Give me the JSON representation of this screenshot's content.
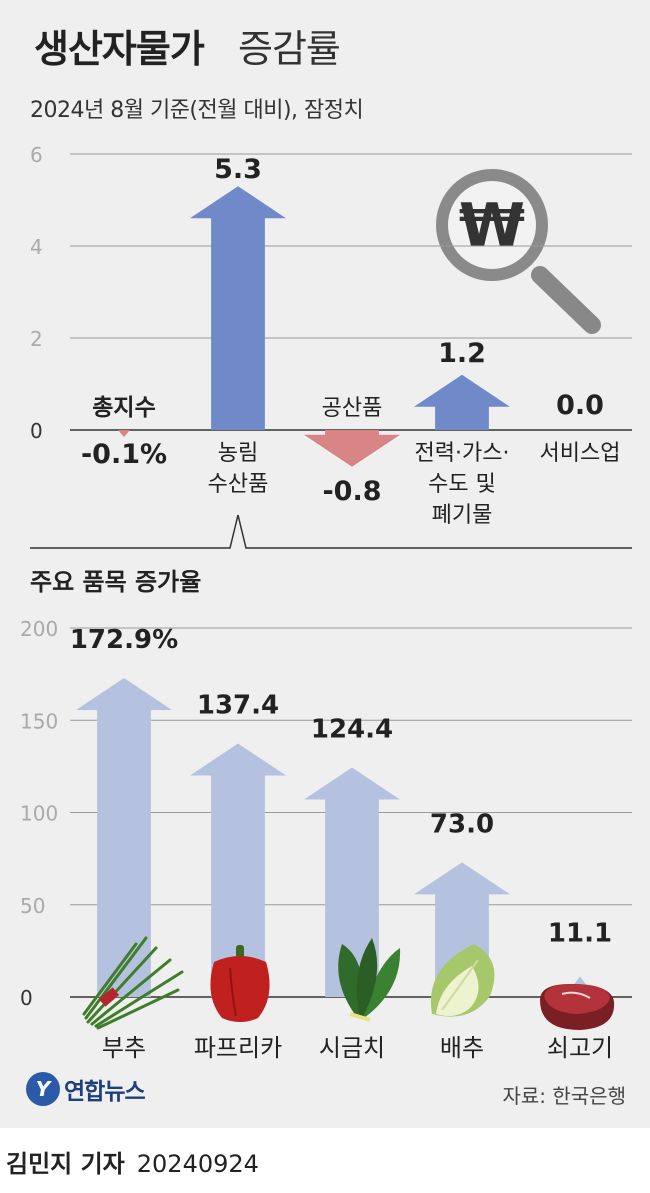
{
  "header": {
    "title_main": "생산자물가",
    "title_sub": "증감률",
    "subtitle": "2024년 8월 기준(전월 대비), 잠정치"
  },
  "chart_data": [
    {
      "type": "bar",
      "categories": [
        "총지수",
        "농림\n수산품",
        "공산품",
        "전력·가스·\n수도 및\n폐기물",
        "서비스업"
      ],
      "values": [
        -0.1,
        5.3,
        -0.8,
        1.2,
        0.0
      ],
      "value_labels": [
        "-0.1%",
        "5.3",
        "-0.8",
        "1.2",
        "0.0"
      ],
      "yticks": [
        0,
        2,
        4,
        6
      ],
      "ylim": [
        -1,
        6
      ],
      "grid": true,
      "colors": {
        "positive": "#6f89c9",
        "negative": "#d98585"
      }
    },
    {
      "type": "bar",
      "title": "주요 품목 증가율",
      "categories": [
        "부추",
        "파프리카",
        "시금치",
        "배추",
        "쇠고기"
      ],
      "values": [
        172.9,
        137.4,
        124.4,
        73.0,
        11.1
      ],
      "value_labels": [
        "172.9%",
        "137.4",
        "124.4",
        "73.0",
        "11.1"
      ],
      "yticks": [
        0,
        50,
        100,
        150,
        200
      ],
      "ylim": [
        0,
        200
      ],
      "grid": true,
      "colors": {
        "bar": "#b4c2df"
      },
      "item_icons": [
        "chive-icon",
        "paprika-icon",
        "spinach-icon",
        "cabbage-icon",
        "beef-icon"
      ]
    }
  ],
  "footer": {
    "logo_mark": "Y",
    "logo_text": "연합뉴스",
    "source": "자료: 한국은행",
    "reporter": "김민지 기자",
    "date": "20240924"
  },
  "decor": {
    "magnifier_icon": "won-magnifier-icon",
    "won_symbol": "₩"
  }
}
